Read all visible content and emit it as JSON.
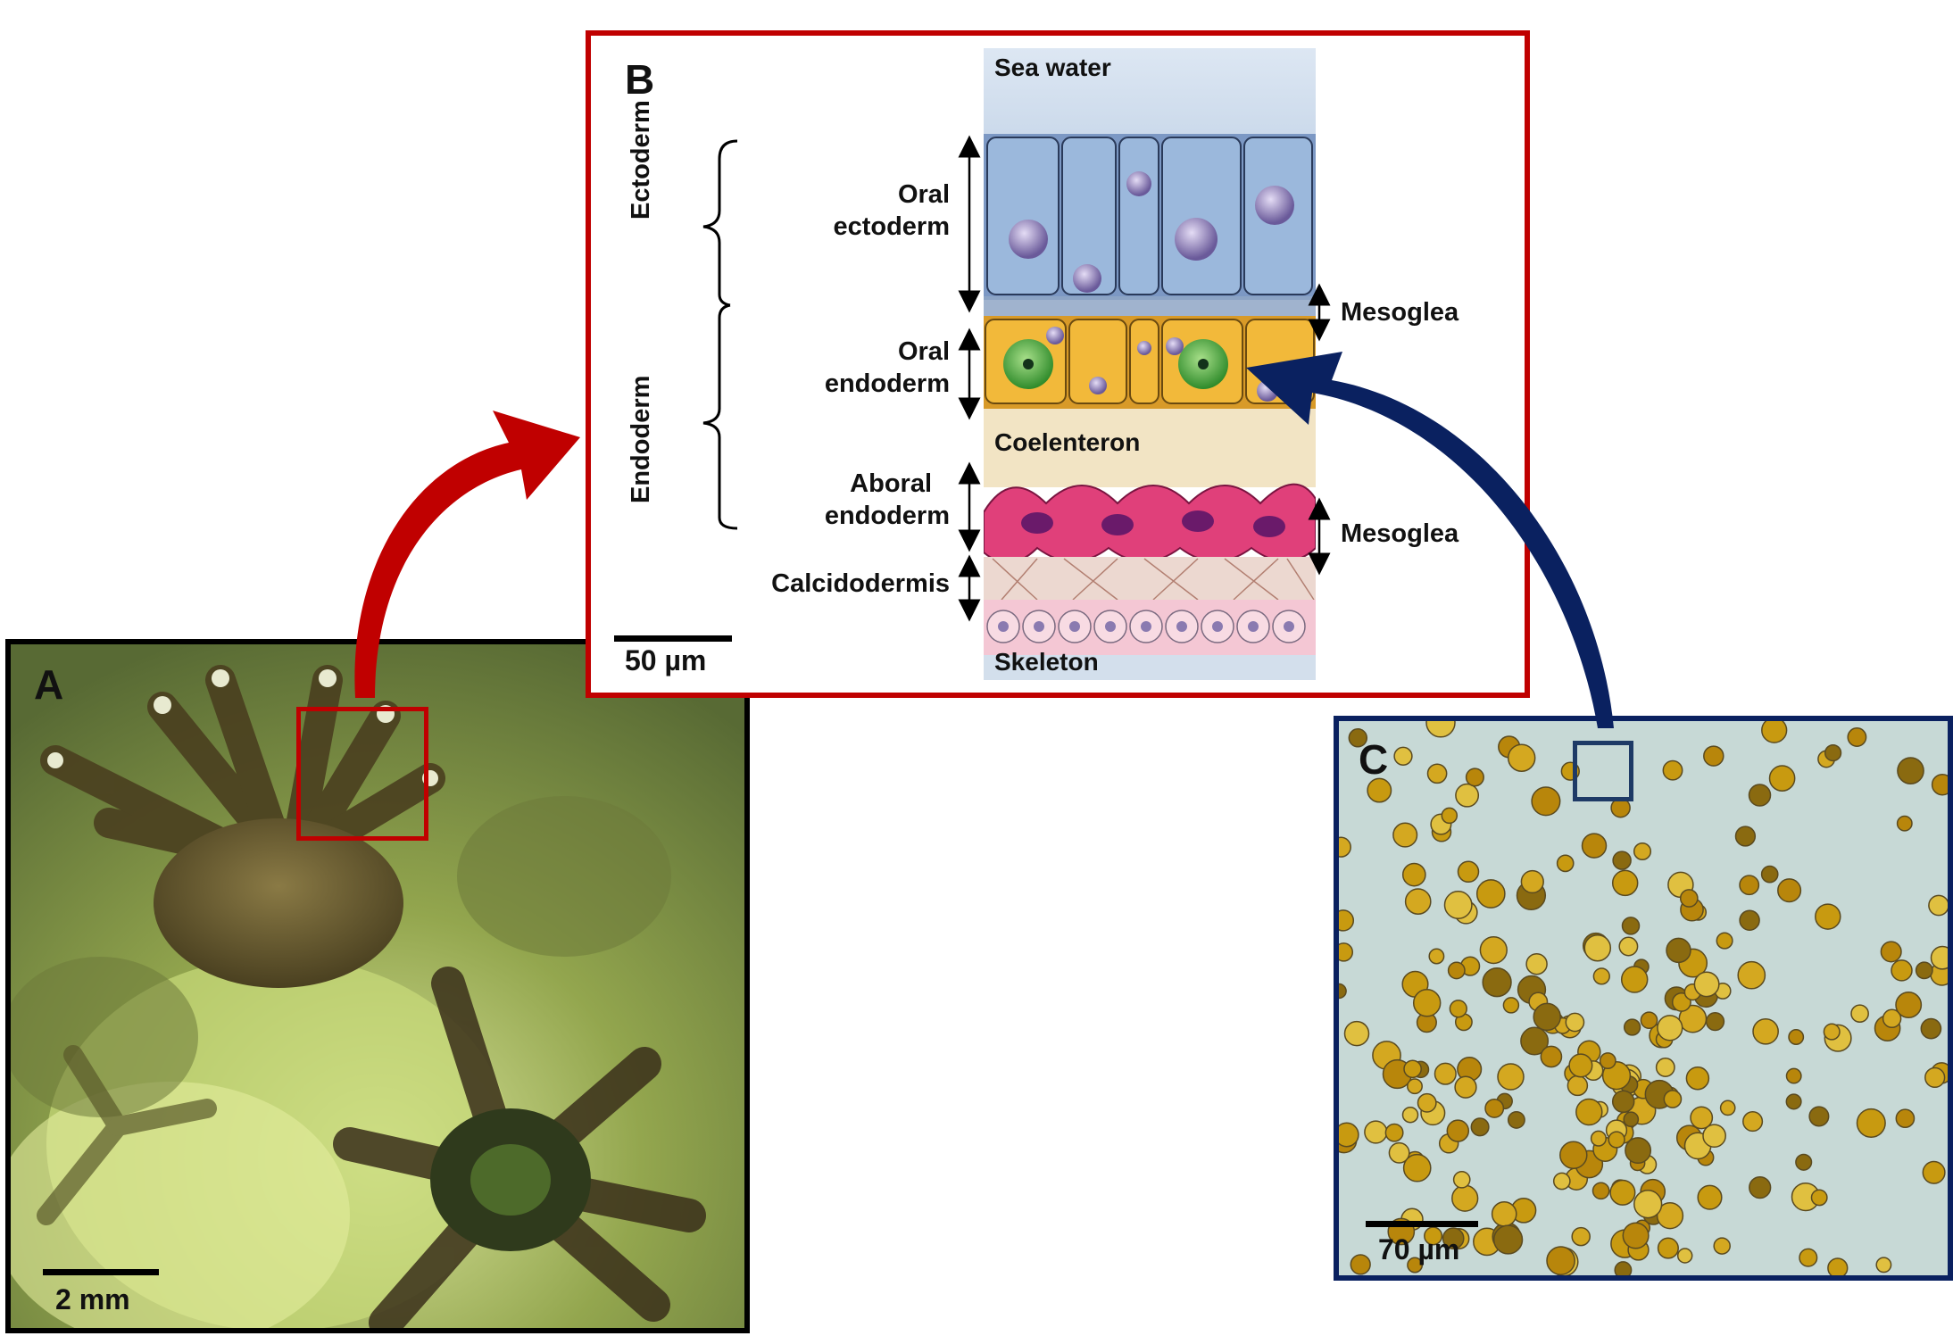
{
  "panel_a": {
    "letter": "A",
    "scale_label": "2 mm"
  },
  "panel_b": {
    "letter": "B",
    "scale_label": "50 µm",
    "layers": {
      "sea_water": "Sea water",
      "coelenteron": "Coelenteron",
      "skeleton": "Skeleton"
    },
    "groups": {
      "ectoderm": "Ectoderm",
      "endoderm": "Endoderm"
    },
    "tissue_labels": {
      "oral_ectoderm_1": "Oral",
      "oral_ectoderm_2": "ectoderm",
      "oral_endoderm_1": "Oral",
      "oral_endoderm_2": "endoderm",
      "aboral_endoderm_1": "Aboral",
      "aboral_endoderm_2": "endoderm",
      "calcidodermis": "Calcidodermis",
      "mesoglea_upper": "Mesoglea",
      "mesoglea_lower": "Mesoglea"
    }
  },
  "panel_c": {
    "letter": "C",
    "scale_label": "70 µm"
  },
  "colors": {
    "panel_a_border": "#000000",
    "panel_b_border": "#c00000",
    "panel_c_border": "#0a2160",
    "arrow_red": "#c00000",
    "arrow_navy": "#0a2160",
    "ectoderm_cell": "#9bb8dc",
    "endoderm_cell": "#f2b93a",
    "aboral_cell": "#e0407a",
    "calcidodermis_cell": "#f4c7d4",
    "zooxanthella": "#4fae3a"
  }
}
